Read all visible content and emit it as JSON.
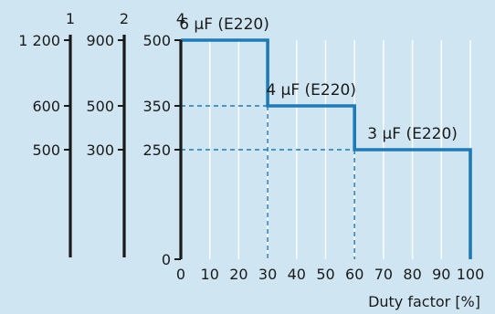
{
  "chart_data": {
    "type": "line",
    "title": "",
    "xlabel": "Duty factor [%]",
    "xlim": [
      0,
      100
    ],
    "ylim": [
      0,
      500
    ],
    "x_ticks": [
      0,
      10,
      20,
      30,
      40,
      50,
      60,
      70,
      80,
      90,
      100
    ],
    "grid": true,
    "series": [
      {
        "x": [
          0,
          30,
          30,
          60,
          60,
          100,
          100
        ],
        "y": [
          500,
          500,
          350,
          350,
          250,
          250,
          0
        ]
      }
    ],
    "y_axes": [
      {
        "header": "4",
        "ticks": [
          0,
          250,
          350,
          500
        ],
        "labels": [
          "0",
          "250",
          "350",
          "500"
        ]
      },
      {
        "header": "2",
        "labels": [
          "300",
          "500",
          "900"
        ],
        "at": [
          250,
          350,
          500
        ]
      },
      {
        "header": "1",
        "labels": [
          "500",
          "600",
          "1 200"
        ],
        "at": [
          250,
          350,
          500
        ]
      }
    ],
    "annotations": [
      {
        "text": "6 µF (E220)",
        "x": 15,
        "y": 500
      },
      {
        "text": "4 µF (E220)",
        "x": 45,
        "y": 350
      },
      {
        "text": "3 µF (E220)",
        "x": 80,
        "y": 250
      }
    ],
    "colors": {
      "background": "#cfe6f2",
      "step_line": "#1f7ab8",
      "grid": "#ffffff",
      "axis": "#1a1a1a"
    }
  }
}
